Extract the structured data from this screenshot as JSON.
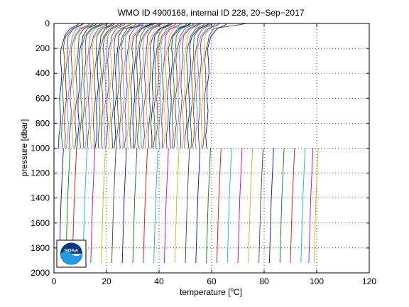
{
  "chart_data": {
    "type": "line",
    "title": "WMO ID 4900168, internal ID 228, 20−Sep−2017",
    "xlabel": "temperature [",
    "xlabel_unit": "C]",
    "xlabel_superscript": "o",
    "ylabel": "pressure [dbar]",
    "xlim": [
      0,
      120
    ],
    "ylim": [
      2000,
      0
    ],
    "y_reversed": true,
    "grid": "dotted",
    "x_ticks": [
      "0",
      "20",
      "40",
      "60",
      "80",
      "100",
      "120"
    ],
    "y_ticks": [
      "0",
      "200",
      "400",
      "600",
      "800",
      "1000",
      "1200",
      "1400",
      "1600",
      "1800",
      "2000"
    ],
    "palette": [
      "#0000ff",
      "#008000",
      "#ff0000",
      "#00bfbf",
      "#bf00bf",
      "#bfbf00",
      "#404040"
    ],
    "series_description": "Waterfall of temperature profiles, each offset by about 1 degree C",
    "shallow_profiles": {
      "count": 57,
      "first_base_offset": 2.0,
      "offset_step": 1.0,
      "max_depth": 1000,
      "cycle_jumps": [
        3,
        21,
        38,
        55
      ]
    },
    "deep_profiles": {
      "bottom_temperature": [
        2.0,
        4.5,
        7.0,
        11.0,
        14.0,
        18.0,
        22.0,
        26.0,
        30.0,
        34.0,
        38.0,
        42.0,
        46.0,
        50.0,
        54.0,
        58.0,
        62.0,
        66.0,
        70.0,
        74.0,
        78.0,
        82.0,
        86.0,
        90.0,
        94.0,
        97.0,
        99.0
      ],
      "min_depth": 1000,
      "max_depth": 1920
    },
    "logo": "NOAA"
  }
}
